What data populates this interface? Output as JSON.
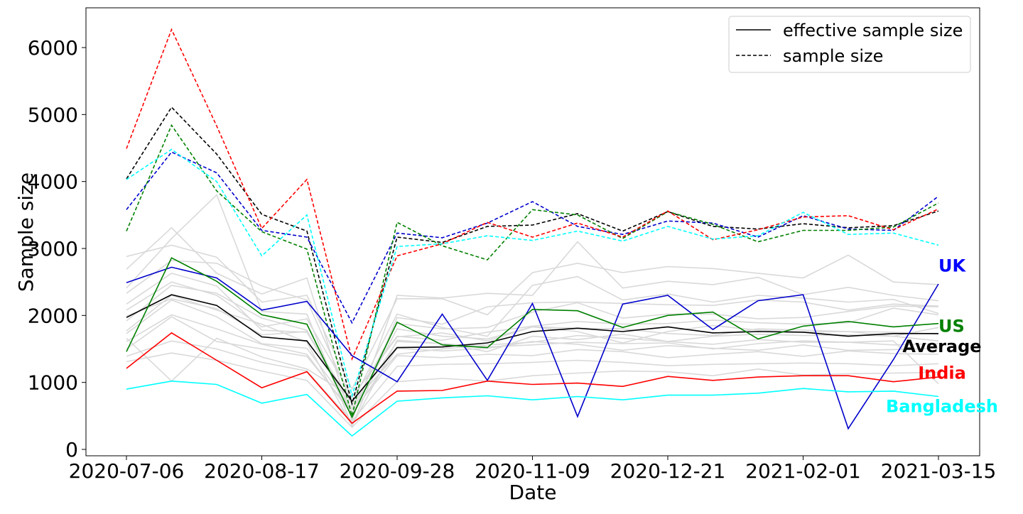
{
  "chart_data": {
    "type": "line",
    "xlabel": "Date",
    "ylabel": "Sample size",
    "x": [
      "2020-07-06",
      "2020-07-20",
      "2020-08-03",
      "2020-08-17",
      "2020-08-31",
      "2020-09-14",
      "2020-09-28",
      "2020-10-12",
      "2020-10-26",
      "2020-11-09",
      "2020-11-23",
      "2020-12-07",
      "2020-12-21",
      "2021-01-04",
      "2021-01-18",
      "2021-02-01",
      "2021-02-15",
      "2021-03-01",
      "2021-03-15"
    ],
    "x_ticks": [
      "2020-07-06",
      "2020-08-17",
      "2020-09-28",
      "2020-11-09",
      "2020-12-21",
      "2021-02-01",
      "2021-03-15"
    ],
    "yticks": [
      0,
      1000,
      2000,
      3000,
      4000,
      5000,
      6000
    ],
    "ylim": [
      -100,
      6600
    ],
    "grid": false,
    "legend": {
      "position": "top-right",
      "entries": [
        {
          "label": "effective sample size",
          "style": "solid"
        },
        {
          "label": "sample size",
          "style": "dashed"
        }
      ]
    },
    "series": [
      {
        "name": "Average",
        "kind": "effective",
        "color": "#000000",
        "values": [
          1970,
          2310,
          2150,
          1680,
          1620,
          720,
          1520,
          1530,
          1590,
          1760,
          1810,
          1760,
          1830,
          1740,
          1760,
          1750,
          1690,
          1730,
          1730
        ]
      },
      {
        "name": "UK",
        "kind": "effective",
        "color": "#0000cc",
        "values": [
          2490,
          2720,
          2560,
          2080,
          2210,
          1400,
          1010,
          2020,
          1030,
          2180,
          490,
          2170,
          2300,
          1790,
          2220,
          2310,
          310,
          1340,
          2470
        ]
      },
      {
        "name": "US",
        "kind": "effective",
        "color": "#008000",
        "values": [
          1460,
          2860,
          2510,
          2010,
          1870,
          480,
          1900,
          1560,
          1520,
          2090,
          2070,
          1820,
          2000,
          2050,
          1650,
          1840,
          1910,
          1830,
          1880
        ]
      },
      {
        "name": "India",
        "kind": "effective",
        "color": "#ff0000",
        "values": [
          1210,
          1740,
          1330,
          920,
          1160,
          390,
          870,
          880,
          1020,
          970,
          990,
          940,
          1090,
          1030,
          1080,
          1100,
          1100,
          1010,
          1080
        ]
      },
      {
        "name": "Bangladesh",
        "kind": "effective",
        "color": "#00ffff",
        "values": [
          900,
          1020,
          970,
          690,
          820,
          200,
          720,
          770,
          800,
          740,
          790,
          740,
          810,
          810,
          840,
          910,
          860,
          870,
          790
        ]
      },
      {
        "name": "Average",
        "kind": "sample",
        "color": "#000000",
        "values": [
          4040,
          5110,
          4410,
          3510,
          3260,
          680,
          3170,
          3090,
          3330,
          3350,
          3520,
          3260,
          3550,
          3330,
          3290,
          3370,
          3310,
          3340,
          3560
        ]
      },
      {
        "name": "UK",
        "kind": "sample",
        "color": "#0000cc",
        "values": [
          3580,
          4440,
          4130,
          3270,
          3170,
          1890,
          3230,
          3160,
          3380,
          3700,
          3330,
          3210,
          3410,
          3380,
          3170,
          3490,
          3290,
          3270,
          3780
        ]
      },
      {
        "name": "US",
        "kind": "sample",
        "color": "#008000",
        "values": [
          3260,
          4840,
          3860,
          3250,
          2990,
          500,
          3390,
          3040,
          2830,
          3580,
          3500,
          3150,
          3550,
          3360,
          3100,
          3270,
          3270,
          3320,
          3680
        ]
      },
      {
        "name": "India",
        "kind": "sample",
        "color": "#ff0000",
        "values": [
          4490,
          6270,
          4830,
          3300,
          4030,
          1350,
          2890,
          3070,
          3390,
          3170,
          3380,
          3170,
          3560,
          3130,
          3280,
          3470,
          3490,
          3280,
          3590
        ]
      },
      {
        "name": "Bangladesh",
        "kind": "sample",
        "color": "#00ffff",
        "values": [
          4030,
          4480,
          4000,
          2890,
          3500,
          800,
          3030,
          3070,
          3190,
          3120,
          3260,
          3110,
          3330,
          3140,
          3190,
          3540,
          3210,
          3230,
          3050
        ]
      }
    ],
    "background_series": {
      "color": "#d9d9d9",
      "series": [
        [
          2880,
          3050,
          2870,
          2200,
          2300,
          900,
          2250,
          2250,
          2010,
          2640,
          2780,
          2640,
          2730,
          2700,
          2630,
          2560,
          2900,
          2500,
          2460
        ],
        [
          2690,
          3310,
          2630,
          2320,
          2560,
          430,
          2300,
          2260,
          2330,
          2300,
          3100,
          2410,
          2510,
          2460,
          2570,
          2310,
          2420,
          2300,
          2220
        ],
        [
          2410,
          3150,
          3800,
          2060,
          2020,
          350,
          1970,
          1870,
          2130,
          2190,
          2200,
          2180,
          2160,
          2150,
          2230,
          2200,
          2080,
          2170,
          2140
        ],
        [
          2330,
          2820,
          2780,
          2440,
          2230,
          700,
          2020,
          1820,
          1690,
          2450,
          2580,
          2230,
          2320,
          2200,
          2300,
          2260,
          2200,
          2240,
          2030
        ],
        [
          2170,
          2630,
          2440,
          1780,
          1750,
          610,
          1880,
          1800,
          1820,
          2050,
          2190,
          1960,
          2020,
          2020,
          1950,
          1970,
          2060,
          2140,
          2130
        ],
        [
          2080,
          2500,
          2300,
          1830,
          1950,
          790,
          1690,
          1630,
          1750,
          1840,
          1910,
          1870,
          1880,
          1930,
          1890,
          1870,
          1890,
          2110,
          2010
        ],
        [
          1920,
          2450,
          2330,
          1960,
          1780,
          530,
          1800,
          1690,
          1650,
          1830,
          1810,
          1800,
          1730,
          1700,
          1800,
          1780,
          1760,
          1750,
          1720
        ],
        [
          1770,
          2300,
          2080,
          1870,
          1600,
          350,
          1630,
          1580,
          1460,
          1690,
          1640,
          1720,
          1610,
          1690,
          1720,
          1700,
          1710,
          1690,
          1620
        ],
        [
          1730,
          2230,
          1980,
          1580,
          1510,
          600,
          1610,
          1580,
          1530,
          1560,
          1600,
          1580,
          1590,
          1500,
          1580,
          1620,
          1600,
          1560,
          1580
        ],
        [
          1610,
          2010,
          1800,
          1570,
          1420,
          520,
          1510,
          1470,
          1510,
          1610,
          1570,
          1480,
          1550,
          1510,
          1480,
          1560,
          1480,
          1490,
          1510
        ],
        [
          1500,
          1980,
          1610,
          1500,
          1390,
          560,
          1400,
          1370,
          1420,
          1400,
          1490,
          1460,
          1370,
          1420,
          1460,
          1390,
          1470,
          1430,
          1420
        ],
        [
          1390,
          1620,
          1500,
          1300,
          1170,
          420,
          1240,
          1270,
          1280,
          1300,
          1330,
          1300,
          1250,
          1270,
          1280,
          1290,
          1280,
          1250,
          1280
        ],
        [
          1310,
          1440,
          1330,
          1170,
          1030,
          330,
          1010,
          1060,
          1020,
          1100,
          1140,
          1170,
          1160,
          1100,
          1200,
          1110,
          1130,
          1140,
          1150
        ],
        [
          1660,
          1020,
          1660,
          1380,
          1200,
          780,
          1680,
          1740,
          1620,
          1830,
          1760,
          1590,
          1760,
          1850,
          1780,
          1750,
          1760,
          1690,
          1820
        ],
        [
          1990,
          2250,
          2100,
          1710,
          1760,
          680,
          1420,
          1500,
          1560,
          1600,
          1700,
          1660,
          1610,
          1570,
          1640,
          1600,
          1600,
          1620,
          980
        ]
      ]
    },
    "annotations": [
      {
        "text": "UK",
        "y": 2750,
        "color": "#0000ff"
      },
      {
        "text": "US",
        "y": 1850,
        "color": "#008000"
      },
      {
        "text": "Average",
        "y": 1550,
        "color": "#000000"
      },
      {
        "text": "India",
        "y": 1150,
        "color": "#ff0000"
      },
      {
        "text": "Bangladesh",
        "y": 650,
        "color": "#00ffff"
      }
    ]
  }
}
